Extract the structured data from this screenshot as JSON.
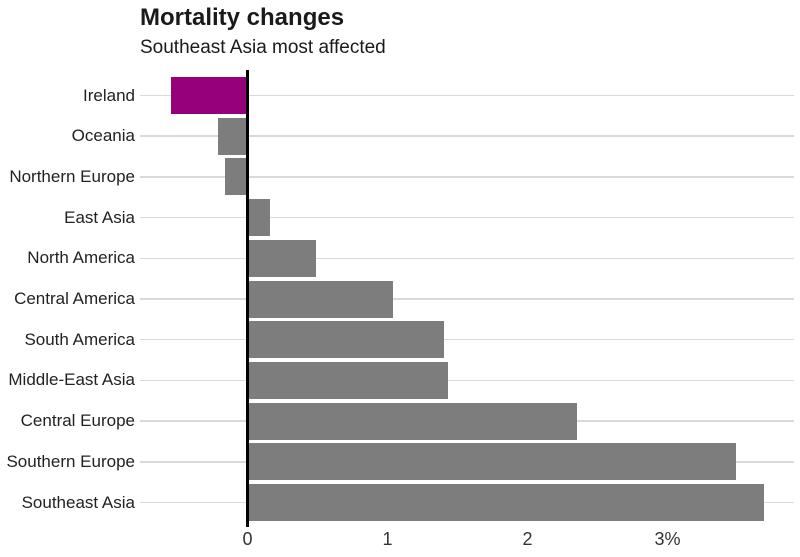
{
  "header": {
    "title": "Mortality changes",
    "subtitle": "Southeast Asia most affected"
  },
  "chart_data": {
    "type": "bar",
    "orientation": "horizontal",
    "title": "Mortality changes",
    "subtitle": "Southeast Asia most affected",
    "categories": [
      "Ireland",
      "Oceania",
      "Northern Europe",
      "East Asia",
      "North America",
      "Central America",
      "South America",
      "Middle-East Asia",
      "Central Europe",
      "Southern Europe",
      "Southeast Asia"
    ],
    "values": [
      -0.55,
      -0.21,
      -0.16,
      0.16,
      0.49,
      1.04,
      1.4,
      1.43,
      2.35,
      3.49,
      3.69
    ],
    "unit": "%",
    "xlabel": "",
    "ylabel": "",
    "xlim": [
      -0.77,
      3.9
    ],
    "x_ticks": [
      0,
      1,
      2,
      3
    ],
    "x_tick_labels": [
      "0",
      "1",
      "2",
      "3%"
    ],
    "grid": "horizontal-per-category",
    "legend": "none",
    "highlight_category": "Ireland",
    "colors": {
      "highlight": "#96007a",
      "default": "#7d7d7d",
      "gridline": "#d9d9d9",
      "zero_line": "#000000",
      "text": "#1a1a1a"
    }
  }
}
